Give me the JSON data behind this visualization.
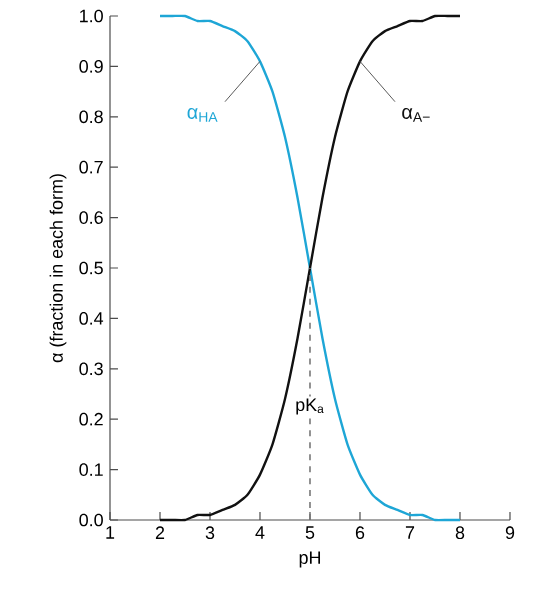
{
  "chart_data": {
    "type": "line",
    "xlabel": "pH",
    "ylabel": "α (fraction in each form)",
    "x": [
      2,
      2.25,
      2.5,
      2.75,
      3,
      3.25,
      3.5,
      3.75,
      4,
      4.25,
      4.5,
      4.75,
      5,
      5.25,
      5.5,
      5.75,
      6,
      6.25,
      6.5,
      6.75,
      7,
      7.25,
      7.5,
      7.75,
      8
    ],
    "series": [
      {
        "color": "#1ea6d6",
        "values": [
          1.0,
          1.0,
          1.0,
          0.99,
          0.99,
          0.98,
          0.97,
          0.95,
          0.91,
          0.85,
          0.76,
          0.64,
          0.5,
          0.36,
          0.24,
          0.15,
          0.09,
          0.05,
          0.03,
          0.02,
          0.01,
          0.01,
          0.0,
          0.0,
          0.0
        ]
      },
      {
        "color": "#111111",
        "values": [
          0.0,
          0.0,
          0.0,
          0.01,
          0.01,
          0.02,
          0.03,
          0.05,
          0.09,
          0.15,
          0.24,
          0.36,
          0.5,
          0.64,
          0.76,
          0.85,
          0.91,
          0.95,
          0.97,
          0.98,
          0.99,
          0.99,
          1.0,
          1.0,
          1.0
        ]
      }
    ],
    "xlim": [
      1,
      9
    ],
    "xticks": [
      1,
      2,
      3,
      4,
      5,
      6,
      7,
      8,
      9
    ],
    "ylim": [
      0,
      1
    ],
    "yticks": [
      {
        "value": 0,
        "label": "0.0"
      },
      {
        "value": 0.1,
        "label": "0.1"
      },
      {
        "value": 0.2,
        "label": "0.2"
      },
      {
        "value": 0.3,
        "label": "0.3"
      },
      {
        "value": 0.4,
        "label": "0.4"
      },
      {
        "value": 0.5,
        "label": "0.5"
      },
      {
        "value": 0.6,
        "label": "0.6"
      },
      {
        "value": 0.7,
        "label": "0.7"
      },
      {
        "value": 0.8,
        "label": "0.8"
      },
      {
        "value": 0.9,
        "label": "0.9"
      },
      {
        "value": 1,
        "label": "1.0"
      }
    ],
    "annotations": [
      {
        "text": "α$_{HA}$",
        "x": 4,
        "y": 0.91
      },
      {
        "text": "α$_{A−}$",
        "x": 6,
        "y": 0.91
      }
    ],
    "ref_lines": [
      {
        "axis": "x",
        "value": 5,
        "label": "pK$_{a}$",
        "line_style": "dashed",
        "color": "#777777"
      }
    ],
    "grid": false,
    "marker": "none",
    "line_style": "solid"
  }
}
